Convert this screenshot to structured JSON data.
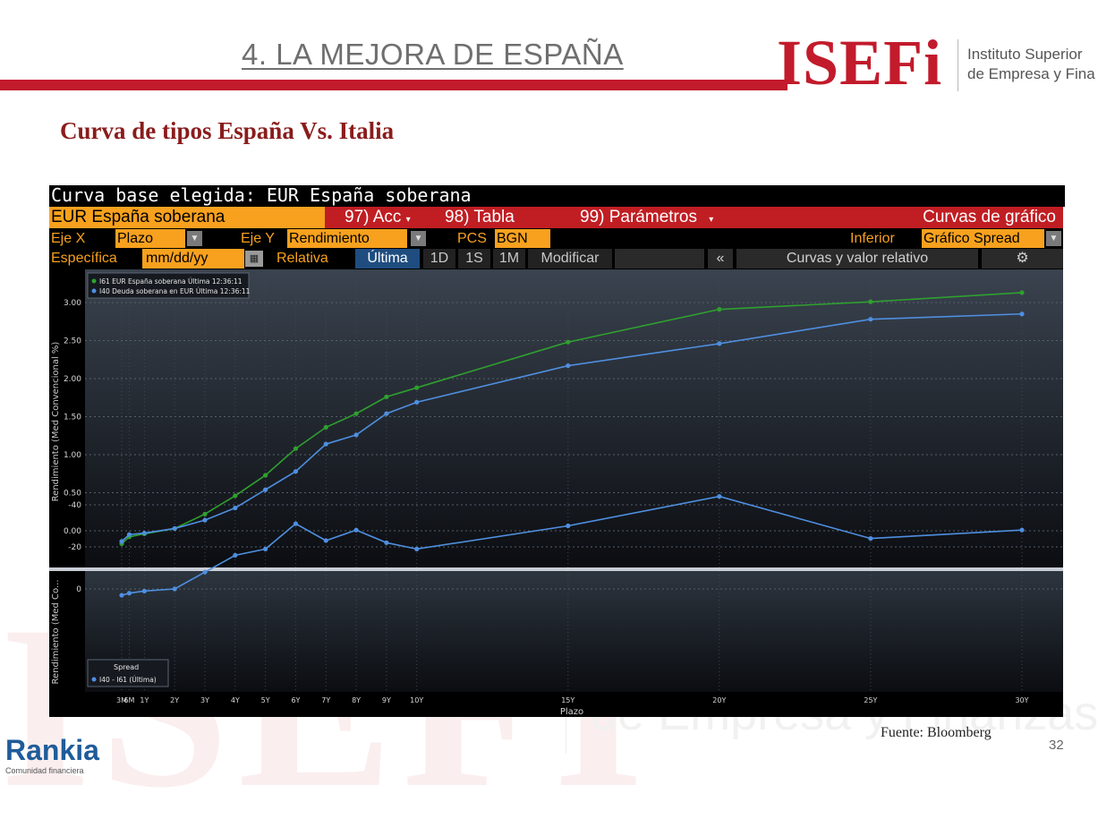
{
  "slide": {
    "title": "4. LA MEJORA DE ESPAÑA",
    "section_title": "Curva de tipos España Vs. Italia",
    "source": "Fuente: Bloomberg",
    "page_number": "32",
    "logo": {
      "text": "ISEFi",
      "tagline_1": "Instituto Superior",
      "tagline_2": "de Empresa y Fina"
    },
    "footer_brand": {
      "name": "Rankia",
      "tagline": "Comunidad financiera"
    },
    "watermark": {
      "big": "ISEFI",
      "sub": "de Empresa y Finanzas"
    }
  },
  "terminal": {
    "title": "Curva base elegida: EUR España soberana",
    "toolbar": {
      "curve": "EUR España soberana",
      "acc": "97) Acc",
      "tabla": "98) Tabla",
      "parametros": "99) Parámetros",
      "curvas": "Curvas de gráfico"
    },
    "row2": {
      "ejex_label": "Eje X",
      "ejex_value": "Plazo",
      "ejey_label": "Eje Y",
      "ejey_value": "Rendimiento",
      "pcs_label": "PCS",
      "pcs_value": "BGN",
      "inferior_label": "Inferior",
      "inferior_value": "Gráfico Spread"
    },
    "row3": {
      "especifica_label": "Específica",
      "date_placeholder": "mm/dd/yy",
      "relativa_label": "Relativa",
      "tabs": [
        "Última",
        "1D",
        "1S",
        "1M"
      ],
      "modificar": "Modificar",
      "collapse": "«",
      "curvas_valor": "Curvas y valor relativo",
      "settings_icon": "gear-icon"
    }
  },
  "chart_data": [
    {
      "type": "line",
      "ylabel": "Rendimiento (Med Convencional %)",
      "ylim": [
        -0.5,
        3.35
      ],
      "yticks": [
        0.0,
        0.5,
        1.0,
        1.5,
        2.0,
        2.5,
        3.0
      ],
      "ytick_labels": [
        "0.00",
        "0.50",
        "1.00",
        "1.50",
        "2.00",
        "2.50",
        "3.00"
      ],
      "x": [
        0.25,
        0.5,
        1,
        2,
        3,
        4,
        5,
        6,
        7,
        8,
        9,
        10,
        15,
        20,
        25,
        30
      ],
      "legend_position": "top-left",
      "grid": true,
      "series": [
        {
          "name": "I61 EUR España soberana Última 12:36:11",
          "color": "#2fa02f",
          "values": [
            -0.17,
            -0.08,
            -0.04,
            0.03,
            0.22,
            0.46,
            0.73,
            1.08,
            1.36,
            1.54,
            1.76,
            1.88,
            2.48,
            2.91,
            3.01,
            3.13
          ]
        },
        {
          "name": "I40 Deuda soberana en EUR Última 12:36:11",
          "color": "#4f8fe0",
          "values": [
            -0.14,
            -0.05,
            -0.03,
            0.03,
            0.14,
            0.3,
            0.54,
            0.78,
            1.14,
            1.26,
            1.54,
            1.69,
            2.17,
            2.46,
            2.78,
            2.85
          ]
        }
      ]
    },
    {
      "type": "line",
      "ylabel": "Rendimiento (Med Co...",
      "xlabel": "Plazo",
      "ylim": [
        -50,
        5
      ],
      "yticks": [
        0,
        -20,
        -40
      ],
      "x": [
        0.25,
        0.5,
        1,
        2,
        3,
        4,
        5,
        6,
        7,
        8,
        9,
        10,
        15,
        20,
        25,
        30
      ],
      "x_tick_values": [
        0.25,
        0.5,
        1,
        2,
        3,
        4,
        5,
        6,
        7,
        8,
        9,
        10,
        15,
        20,
        25,
        30
      ],
      "categories": [
        "3M",
        "6M",
        "1Y",
        "2Y",
        "3Y",
        "4Y",
        "5Y",
        "6Y",
        "7Y",
        "8Y",
        "9Y",
        "10Y",
        "15Y",
        "20Y",
        "25Y",
        "30Y"
      ],
      "legend_title": "Spread",
      "legend_position": "bottom-left",
      "grid": true,
      "series": [
        {
          "name": "I40 - I61 (Última)",
          "color": "#4f8fe0",
          "values": [
            3,
            2,
            1,
            0,
            -8,
            -16,
            -19,
            -31,
            -23,
            -28,
            -22,
            -19,
            -30,
            -44,
            -24,
            -28
          ]
        }
      ]
    }
  ]
}
